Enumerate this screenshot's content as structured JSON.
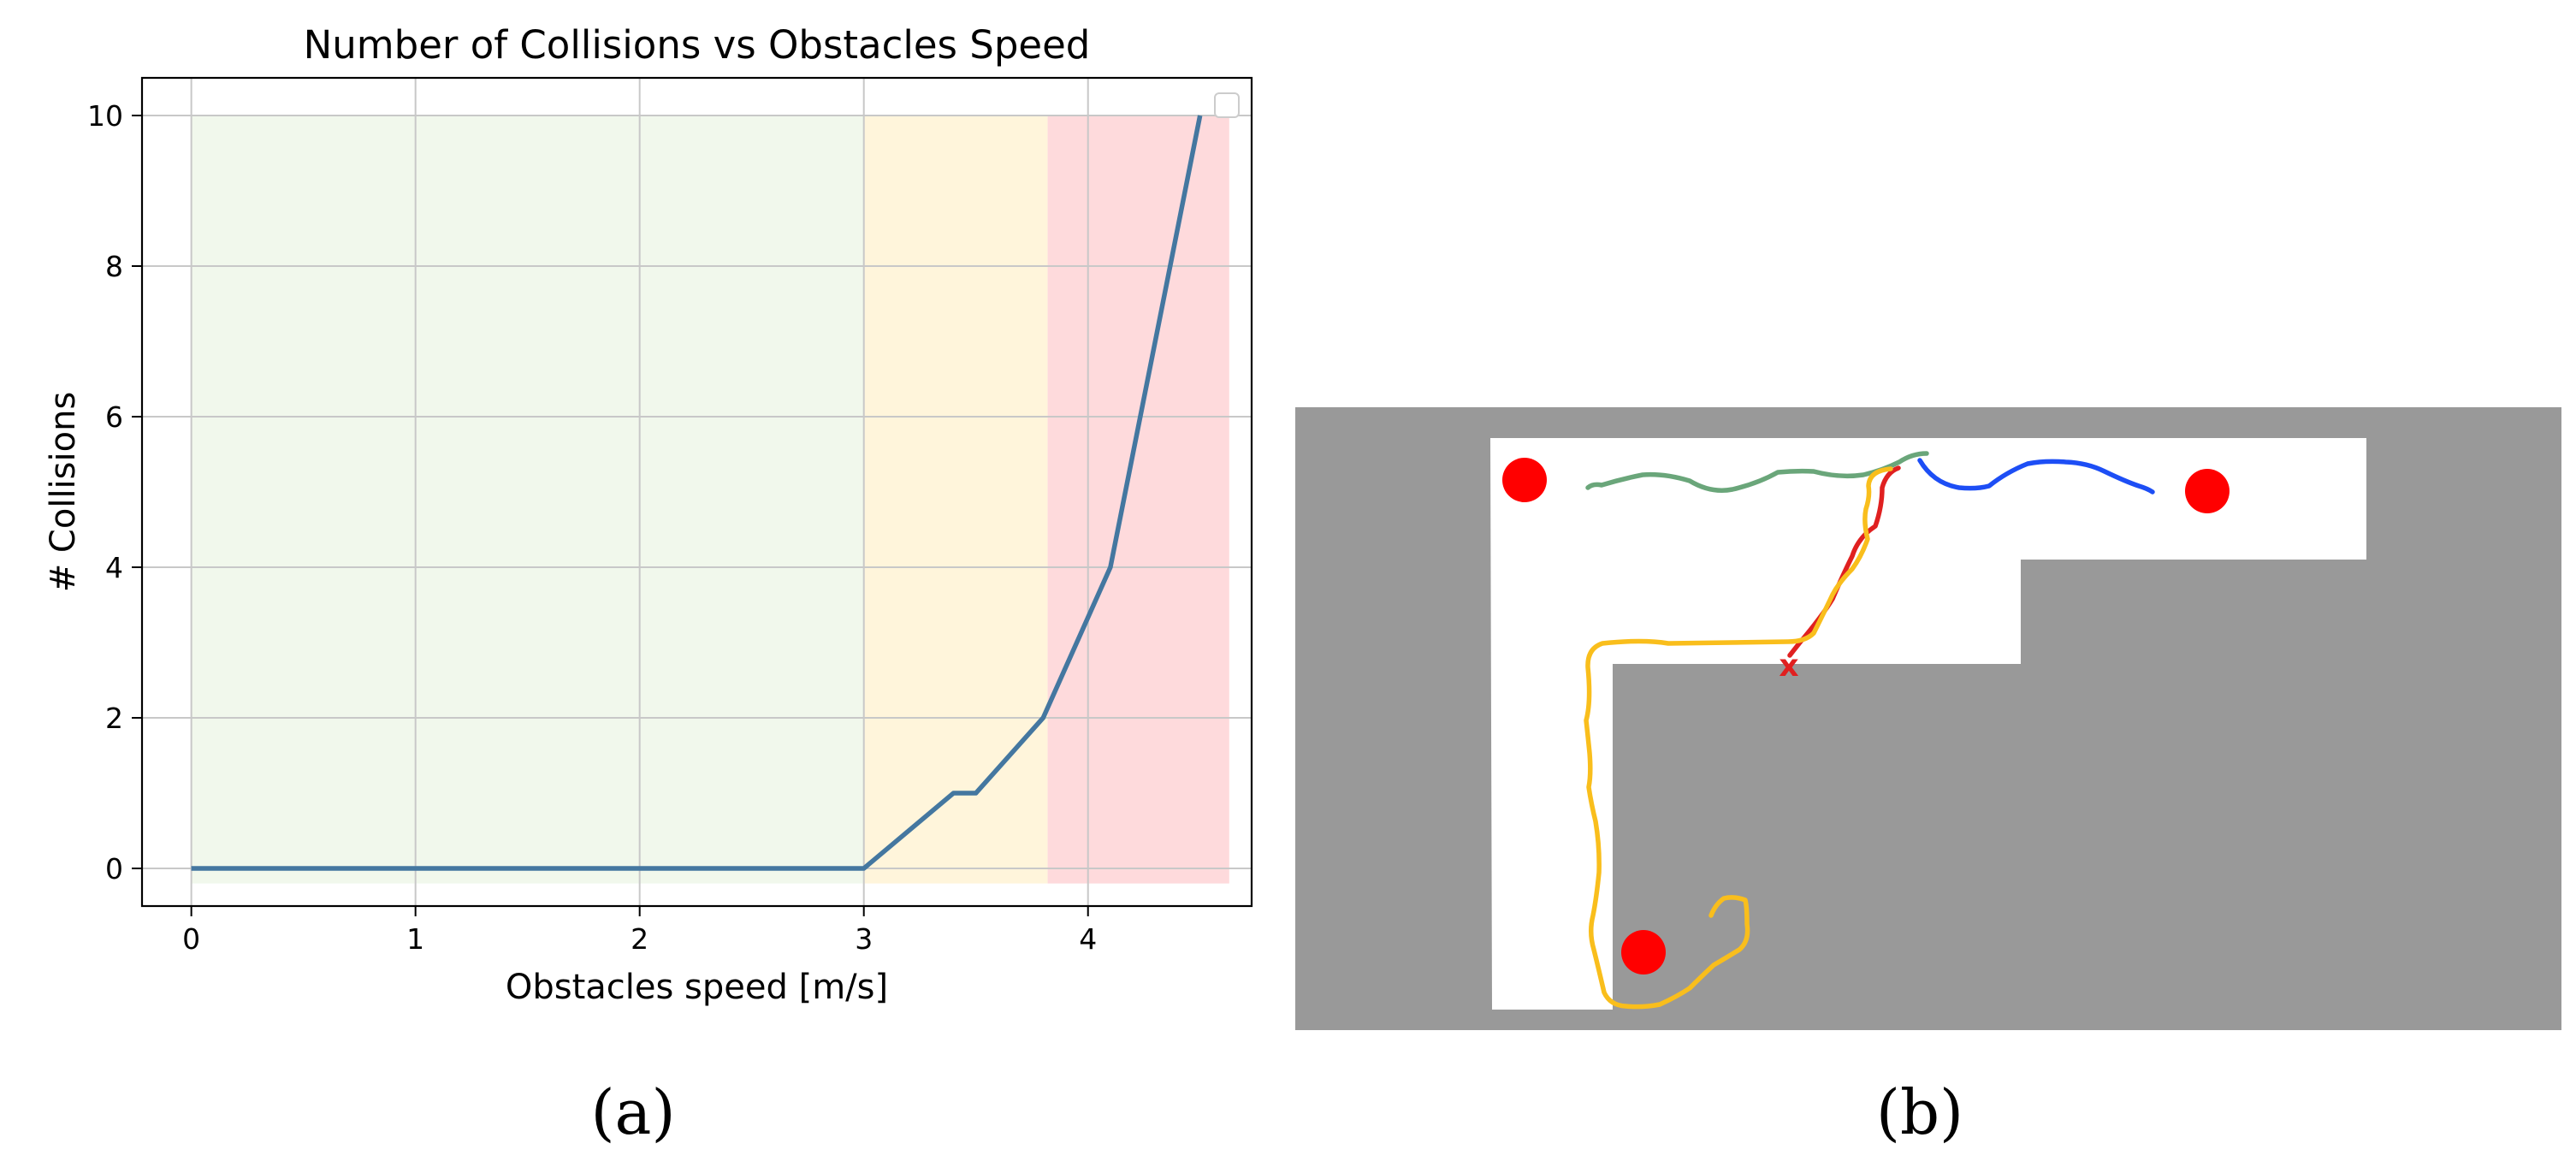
{
  "chart_data": {
    "type": "line",
    "title": "Number of Collisions vs Obstacles Speed",
    "xlabel": "Obstacles speed [m/s]",
    "ylabel": "# Collisions",
    "xlim": [
      -0.22,
      4.73
    ],
    "ylim": [
      -0.5,
      10.5
    ],
    "xticks": [
      0,
      1,
      2,
      3,
      4
    ],
    "yticks": [
      0,
      2,
      4,
      6,
      8,
      10
    ],
    "grid": true,
    "legend": "top-right (empty)",
    "series": [
      {
        "color": "#4477A0",
        "x": [
          0,
          0.5,
          1,
          1.5,
          2,
          2.5,
          3,
          3.4,
          3.5,
          3.8,
          4.1,
          4.5
        ],
        "y": [
          0,
          0,
          0,
          0,
          0,
          0,
          0,
          1,
          1,
          2,
          4,
          10
        ]
      }
    ],
    "regions": [
      {
        "color": "#F1F8EC",
        "x": [
          0,
          3
        ],
        "y": [
          -0.2,
          10
        ]
      },
      {
        "color": "#FFF5DB",
        "x": [
          3,
          3.82
        ],
        "y": [
          -0.2,
          10
        ]
      },
      {
        "color": "#FEDADC",
        "x": [
          3.82,
          4.63
        ],
        "y": [
          -0.2,
          10
        ]
      }
    ]
  },
  "map": {
    "colors": {
      "obstacle": "#999999",
      "free": "#ffffff",
      "goal": "#ff0000",
      "trajectory_green": "#6aa67a",
      "trajectory_blue": "#1d4ef5",
      "trajectory_red": "#e02020",
      "trajectory_yellow": "#f9be1c"
    },
    "collision_marker": "x",
    "goal_count": 3
  },
  "captions": {
    "a": "(a)",
    "b": "(b)"
  }
}
